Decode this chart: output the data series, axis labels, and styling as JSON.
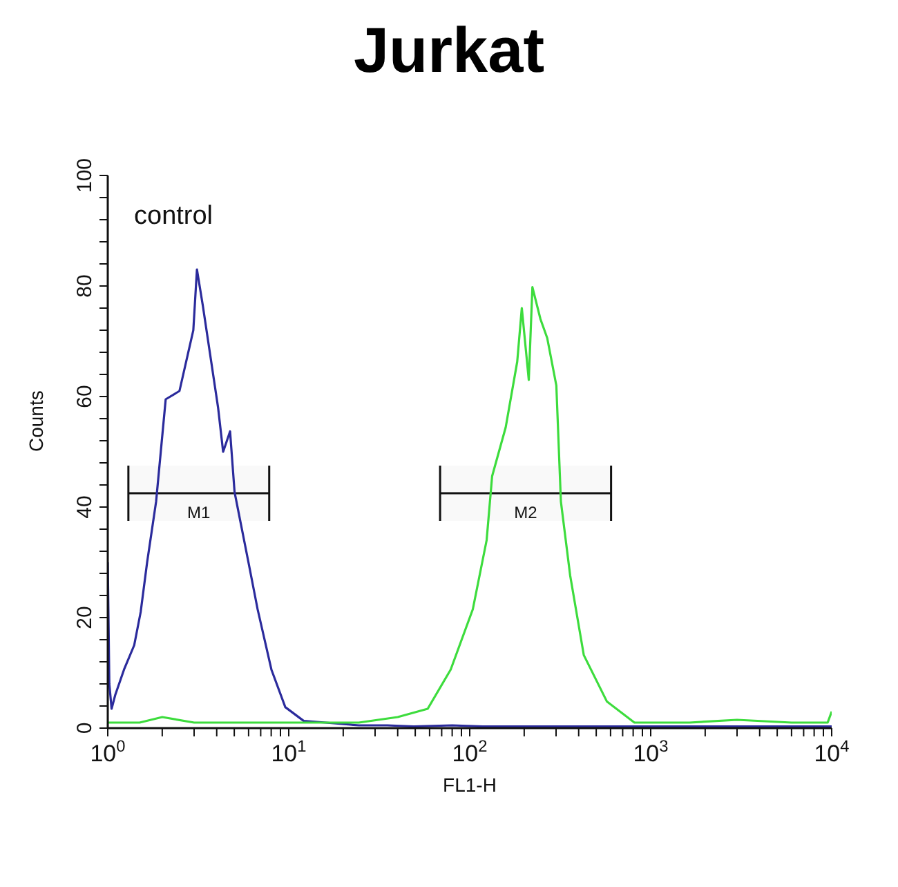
{
  "chart_data": {
    "type": "line",
    "title": "Jurkat",
    "xlabel": "FL1-H",
    "ylabel": "Counts",
    "log": "x",
    "marker": "none",
    "line_style": "solid",
    "xlim": [
      1,
      10000
    ],
    "ylim": [
      0,
      100
    ],
    "xticks": [
      {
        "value": 1,
        "label": "10$^{0}$"
      },
      {
        "value": 2,
        "label": null
      },
      {
        "value": 3,
        "label": null
      },
      {
        "value": 4,
        "label": null
      },
      {
        "value": 5,
        "label": null
      },
      {
        "value": 6,
        "label": null
      },
      {
        "value": 7,
        "label": null
      },
      {
        "value": 8,
        "label": null
      },
      {
        "value": 9,
        "label": null
      },
      {
        "value": 10,
        "label": "10$^{1}$"
      },
      {
        "value": 20,
        "label": null
      },
      {
        "value": 30,
        "label": null
      },
      {
        "value": 40,
        "label": null
      },
      {
        "value": 50,
        "label": null
      },
      {
        "value": 60,
        "label": null
      },
      {
        "value": 70,
        "label": null
      },
      {
        "value": 80,
        "label": null
      },
      {
        "value": 90,
        "label": null
      },
      {
        "value": 100,
        "label": "10$^{2}$"
      },
      {
        "value": 200,
        "label": null
      },
      {
        "value": 300,
        "label": null
      },
      {
        "value": 400,
        "label": null
      },
      {
        "value": 500,
        "label": null
      },
      {
        "value": 600,
        "label": null
      },
      {
        "value": 700,
        "label": null
      },
      {
        "value": 800,
        "label": null
      },
      {
        "value": 900,
        "label": null
      },
      {
        "value": 1000,
        "label": "10$^{3}$"
      },
      {
        "value": 2000,
        "label": null
      },
      {
        "value": 3000,
        "label": null
      },
      {
        "value": 4000,
        "label": null
      },
      {
        "value": 5000,
        "label": null
      },
      {
        "value": 6000,
        "label": null
      },
      {
        "value": 7000,
        "label": null
      },
      {
        "value": 8000,
        "label": null
      },
      {
        "value": 9000,
        "label": null
      },
      {
        "value": 10000,
        "label": "10$^{4}$"
      }
    ],
    "yticks": [
      0,
      {
        "value": 4,
        "label": null
      },
      {
        "value": 8,
        "label": null
      },
      {
        "value": 12,
        "label": null
      },
      {
        "value": 16,
        "label": null
      },
      20,
      {
        "value": 24,
        "label": null
      },
      {
        "value": 28,
        "label": null
      },
      {
        "value": 32,
        "label": null
      },
      {
        "value": 36,
        "label": null
      },
      40,
      {
        "value": 44,
        "label": null
      },
      {
        "value": 48,
        "label": null
      },
      {
        "value": 52,
        "label": null
      },
      {
        "value": 56,
        "label": null
      },
      60,
      {
        "value": 64,
        "label": null
      },
      {
        "value": 68,
        "label": null
      },
      {
        "value": 72,
        "label": null
      },
      {
        "value": 76,
        "label": null
      },
      80,
      {
        "value": 84,
        "label": null
      },
      {
        "value": 88,
        "label": null
      },
      {
        "value": 92,
        "label": null
      },
      {
        "value": 96,
        "label": null
      },
      100
    ],
    "annotations": [
      "control"
    ],
    "bands": [
      {
        "axis": "x",
        "from": 1.3,
        "to": 7.8,
        "label": "M1"
      },
      {
        "axis": "x",
        "from": 68.6,
        "to": 604,
        "label": "M2"
      }
    ],
    "series": [
      {
        "color": "#2b2b9c",
        "x": [
          1,
          1.02,
          1.05,
          1.1,
          1.23,
          1.4,
          1.52,
          1.65,
          1.85,
          2.09,
          2.49,
          2.97,
          3.11,
          3.35,
          4.07,
          4.34,
          4.74,
          5.02,
          5.99,
          6.73,
          8.02,
          9.57,
          12.1,
          16,
          24.4,
          35,
          49,
          80,
          118,
          200,
          400,
          683,
          1500,
          4000,
          10000
        ],
        "values": [
          30,
          8,
          3.5,
          6,
          10.6,
          15,
          21,
          30,
          41,
          59.5,
          61,
          72,
          83,
          76.5,
          58,
          50,
          53.7,
          42.7,
          30,
          21.5,
          10.6,
          3.8,
          1.3,
          1,
          0.5,
          0.5,
          0.3,
          0.5,
          0.3,
          0.3,
          0.3,
          0.3,
          0.3,
          0.3,
          0.3
        ]
      },
      {
        "color": "#3ddc3d",
        "x": [
          1,
          1.5,
          2,
          3,
          5,
          8,
          12,
          18,
          24.4,
          40,
          58.6,
          78.5,
          104,
          124,
          133,
          158,
          183,
          194,
          212,
          222,
          246,
          268,
          301,
          319,
          359,
          427,
          573,
          813,
          1641,
          3000,
          6000,
          9500,
          10000
        ],
        "values": [
          1,
          1,
          2,
          1,
          1,
          1,
          1,
          1,
          1,
          2,
          3.5,
          10.6,
          21.5,
          34,
          45.6,
          54.4,
          66.3,
          76,
          63,
          79.8,
          74,
          70.6,
          62,
          41,
          27.6,
          13.2,
          4.8,
          1,
          1,
          1.5,
          1,
          1,
          3
        ]
      }
    ]
  }
}
